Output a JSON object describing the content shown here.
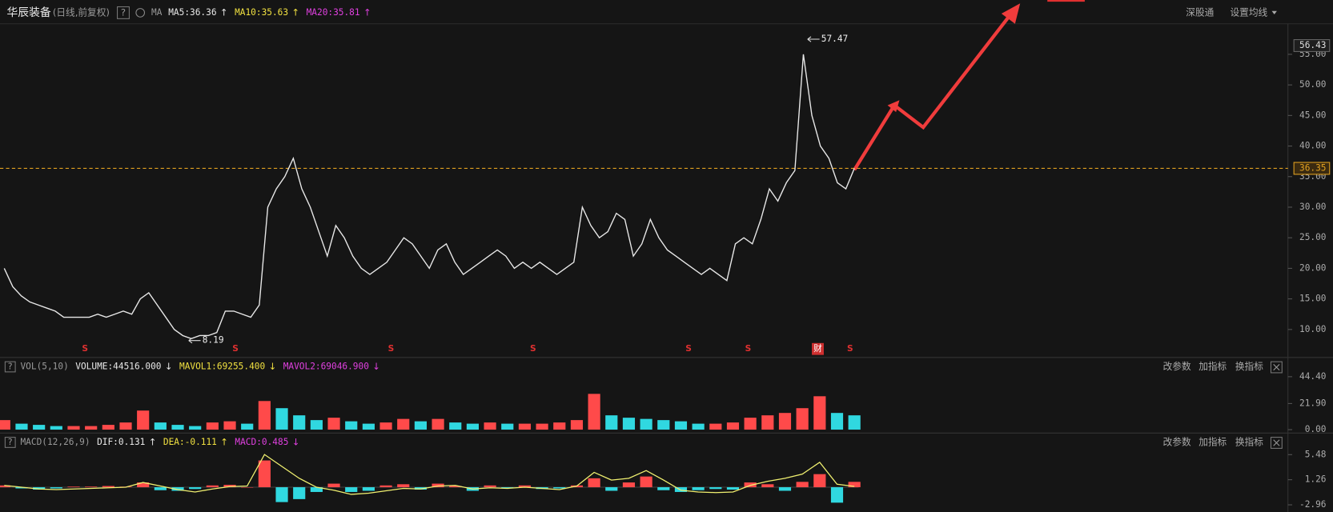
{
  "header": {
    "name": "华辰装备",
    "mode": "(日线,前复权)",
    "help": "?",
    "indicator": "MA",
    "items": [
      {
        "text": "MA5:36.36",
        "arrow": "↑",
        "color": "#e8e8e8"
      },
      {
        "text": "MA10:35.63",
        "arrow": "↑",
        "color": "#f0e040"
      },
      {
        "text": "MA20:35.81",
        "arrow": "↑",
        "color": "#e040e0"
      }
    ],
    "links": [
      "深股通",
      "设置均线"
    ]
  },
  "chart_data": [
    {
      "type": "line",
      "color": "#e8e8e8",
      "values": [
        20,
        17,
        15.5,
        14.5,
        14,
        13.5,
        13,
        12,
        12,
        12,
        12,
        12.5,
        12,
        12.5,
        13,
        12.5,
        15,
        16,
        14,
        12,
        10,
        9,
        8.5,
        9,
        9,
        9.5,
        13,
        13,
        12.5,
        12,
        14,
        30,
        33,
        35,
        38,
        33,
        30,
        26,
        22,
        27,
        25,
        22,
        20,
        19,
        20,
        21,
        23,
        25,
        24,
        22,
        20,
        23,
        24,
        21,
        19,
        20,
        21,
        22,
        23,
        22,
        20,
        21,
        20,
        21,
        20,
        19,
        20,
        21,
        30,
        27,
        25,
        26,
        29,
        28,
        22,
        24,
        28,
        25,
        23,
        22,
        21,
        20,
        19,
        20,
        19,
        18,
        24,
        25,
        24,
        28,
        33,
        31,
        34,
        36,
        55,
        45,
        40,
        38,
        34,
        33,
        36.35
      ],
      "ylim": [
        5.56,
        58.33
      ],
      "yticks": [
        {
          "value": 10,
          "label": "10.00"
        },
        {
          "value": 15,
          "label": "15.00"
        },
        {
          "value": 20,
          "label": "20.00"
        },
        {
          "value": 25,
          "label": "25.00"
        },
        {
          "value": 30,
          "label": "30.00"
        },
        {
          "value": 35,
          "label": "35.00"
        },
        {
          "value": 40,
          "label": "40.00"
        },
        {
          "value": 45,
          "label": "45.00"
        },
        {
          "value": 50,
          "label": "50.00"
        },
        {
          "value": 55,
          "label": "55.00"
        }
      ],
      "top_label": {
        "value": 56.43,
        "label": "56.43"
      },
      "reference_line": {
        "value": 36.35,
        "label": "36.35",
        "color": "#e0a020"
      },
      "annotations": [
        {
          "value": 57.47,
          "label": "57.47"
        },
        {
          "value": 8.19,
          "label": "8.19"
        }
      ],
      "markers": [
        "S",
        "S",
        "S",
        "S",
        "S",
        "S",
        "财",
        "S"
      ]
    },
    {
      "type": "bar",
      "help": "?",
      "title": "VOL(5,10)",
      "items": [
        {
          "text": "VOLUME:44516.000",
          "arrow": "↓",
          "color": "#e8e8e8"
        },
        {
          "text": "MAVOL1:69255.400",
          "arrow": "↓",
          "color": "#f0e040"
        },
        {
          "text": "MAVOL2:69046.900",
          "arrow": "↓",
          "color": "#e040e0"
        }
      ],
      "tools": [
        "改参数",
        "加指标",
        "换指标"
      ],
      "values": [
        8,
        5,
        4,
        3,
        3,
        3,
        4,
        6,
        16,
        6,
        4,
        3,
        6,
        7,
        5,
        24,
        18,
        12,
        8,
        10,
        7,
        5,
        6,
        9,
        7,
        9,
        6,
        5,
        6,
        5,
        5,
        5,
        6,
        8,
        30,
        12,
        10,
        9,
        8,
        7,
        5,
        5,
        6,
        10,
        12,
        14,
        18,
        28,
        14,
        12
      ],
      "colors": {
        "up": "#ff4a4a",
        "down": "#30d8e0"
      },
      "ylim": [
        0,
        47
      ],
      "yticks": [
        {
          "value": 0,
          "label": "0.00"
        },
        {
          "value": 21.9,
          "label": "21.90"
        },
        {
          "value": 44.4,
          "label": "44.40"
        }
      ]
    },
    {
      "type": "combo",
      "help": "?",
      "title": "MACD(12,26,9)",
      "items": [
        {
          "text": "DIF:0.131",
          "arrow": "↑",
          "color": "#e8e8e8"
        },
        {
          "text": "DEA:-0.111",
          "arrow": "↑",
          "color": "#f0e040"
        },
        {
          "text": "MACD:0.485",
          "arrow": "↓",
          "color": "#e040e0"
        }
      ],
      "tools": [
        "改参数",
        "加指标",
        "换指标"
      ],
      "series": [
        {
          "kind": "bar",
          "colors": {
            "up": "#ff4a4a",
            "down": "#30d8e0"
          },
          "values": [
            0.3,
            -0.2,
            -0.4,
            -0.2,
            0.1,
            0.1,
            0.2,
            0.1,
            0.8,
            -0.5,
            -0.6,
            -0.3,
            0.3,
            0.4,
            0,
            4.5,
            -2.5,
            -2,
            -0.8,
            0.6,
            -0.8,
            -0.6,
            0.3,
            0.5,
            -0.4,
            0.6,
            0.2,
            -0.6,
            0.3,
            -0.2,
            0.3,
            -0.3,
            -0.2,
            0.3,
            1.5,
            -0.6,
            0.8,
            1.8,
            -0.5,
            -0.8,
            -0.5,
            -0.3,
            -0.4,
            0.8,
            0.5,
            -0.6,
            0.9,
            2.2,
            -2.6,
            0.9
          ]
        },
        {
          "kind": "line",
          "color": "#f0f070",
          "values": [
            0.3,
            0,
            -0.3,
            -0.4,
            -0.3,
            -0.2,
            -0.1,
            0,
            0.8,
            0.2,
            -0.4,
            -0.8,
            -0.3,
            0.1,
            0.2,
            5.5,
            3.5,
            1.5,
            0,
            -0.5,
            -1.2,
            -1,
            -0.6,
            -0.2,
            -0.3,
            0.2,
            0.3,
            -0.3,
            -0.1,
            -0.2,
            0,
            -0.2,
            -0.4,
            0.2,
            2.5,
            1.2,
            1.5,
            2.8,
            1.2,
            -0.5,
            -0.8,
            -0.9,
            -0.8,
            0.3,
            1,
            1.5,
            2.2,
            4.2,
            0.5,
            0.131
          ]
        }
      ],
      "ylim": [
        -3.74,
        8.4
      ],
      "yticks": [
        {
          "value": -2.96,
          "label": "-2.96"
        },
        {
          "value": 1.26,
          "label": "1.26"
        },
        {
          "value": 5.48,
          "label": "5.48"
        }
      ]
    }
  ]
}
